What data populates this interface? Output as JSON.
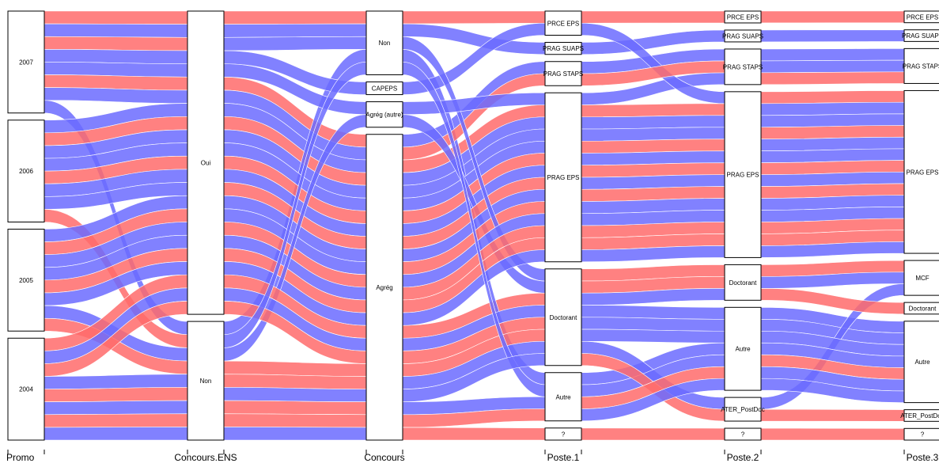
{
  "chart_data": {
    "type": "alluvial",
    "colors": {
      "group_a": "#6b6bff",
      "group_b": "#ff6b6b",
      "box_fill": "#ffffff",
      "box_stroke": "#000000"
    },
    "axes": [
      {
        "name": "Promo",
        "categories": [
          "2007",
          "2006",
          "2005",
          "2004"
        ]
      },
      {
        "name": "Concours.ENS",
        "categories": [
          "Oui",
          "Non"
        ]
      },
      {
        "name": "Concours",
        "categories": [
          "Non",
          "CAPEPS",
          "Agrég (autre)",
          "Agrég"
        ]
      },
      {
        "name": "Poste.1",
        "categories": [
          "PRCE EPS",
          "PRAG SUAPS",
          "PRAG STAPS",
          "PRAG EPS",
          "Doctorant",
          "Autre",
          "?"
        ]
      },
      {
        "name": "Poste.2",
        "categories": [
          "PRCE EPS",
          "PRAG SUAPS",
          "PRAG STAPS",
          "PRAG EPS",
          "Doctorant",
          "Autre",
          "ATER_PostDoc",
          "?"
        ]
      },
      {
        "name": "Poste.3",
        "categories": [
          "PRCE EPS",
          "PRAG SUAPS",
          "PRAG STAPS",
          "PRAG EPS",
          "MCF",
          "Doctorant",
          "Autre",
          "ATER_PostDoc",
          "?"
        ]
      }
    ],
    "records": [
      [
        "2007",
        "Oui",
        "Non",
        "PRCE EPS",
        "PRCE EPS",
        "PRCE EPS",
        "b"
      ],
      [
        "2007",
        "Oui",
        "Non",
        "PRAG SUAPS",
        "PRAG SUAPS",
        "PRAG SUAPS",
        "a"
      ],
      [
        "2007",
        "Oui",
        "Agrég",
        "PRAG EPS",
        "PRAG EPS",
        "PRAG EPS",
        "b"
      ],
      [
        "2007",
        "Oui",
        "Agrég",
        "PRAG EPS",
        "PRAG EPS",
        "PRAG EPS",
        "a"
      ],
      [
        "2007",
        "Oui",
        "Agrég",
        "PRAG STAPS",
        "PRAG STAPS",
        "PRAG STAPS",
        "a"
      ],
      [
        "2007",
        "Oui",
        "Agrég",
        "Doctorant",
        "Doctorant",
        "MCF",
        "b"
      ],
      [
        "2007",
        "Oui",
        "Agrég",
        "PRAG EPS",
        "PRAG STAPS",
        "PRAG STAPS",
        "a"
      ],
      [
        "2007",
        "Non",
        "Non",
        "Autre",
        "Autre",
        "Autre",
        "a"
      ],
      [
        "2006",
        "Oui",
        "Agrég",
        "PRAG EPS",
        "PRAG EPS",
        "PRAG EPS",
        "a"
      ],
      [
        "2006",
        "Oui",
        "Agrég",
        "PRAG EPS",
        "PRAG EPS",
        "PRAG EPS",
        "b"
      ],
      [
        "2006",
        "Oui",
        "Agrég",
        "Doctorant",
        "Autre",
        "Autre",
        "a"
      ],
      [
        "2006",
        "Oui",
        "CAPEPS",
        "PRCE EPS",
        "PRAG EPS",
        "PRAG EPS",
        "a"
      ],
      [
        "2006",
        "Oui",
        "Agrég",
        "PRAG STAPS",
        "PRAG STAPS",
        "PRAG STAPS",
        "b"
      ],
      [
        "2006",
        "Oui",
        "Agrég",
        "PRAG EPS",
        "PRAG EPS",
        "PRAG EPS",
        "a"
      ],
      [
        "2006",
        "Oui",
        "Agrég (autre)",
        "Doctorant",
        "ATER_PostDoc",
        "MCF",
        "a"
      ],
      [
        "2006",
        "Non",
        "Agrég",
        "PRAG EPS",
        "PRAG EPS",
        "PRAG EPS",
        "b"
      ],
      [
        "2005",
        "Oui",
        "Agrég",
        "PRAG EPS",
        "PRAG EPS",
        "PRAG EPS",
        "a"
      ],
      [
        "2005",
        "Oui",
        "Agrég",
        "PRAG EPS",
        "PRAG EPS",
        "PRAG EPS",
        "b"
      ],
      [
        "2005",
        "Oui",
        "Non",
        "Doctorant",
        "Autre",
        "Autre",
        "a"
      ],
      [
        "2005",
        "Oui",
        "Agrég",
        "PRAG EPS",
        "PRAG EPS",
        "PRAG EPS",
        "a"
      ],
      [
        "2005",
        "Oui",
        "Agrég",
        "Doctorant",
        "Doctorant",
        "Doctorant",
        "b"
      ],
      [
        "2005",
        "Oui",
        "Agrég",
        "Autre",
        "Autre",
        "Autre",
        "a"
      ],
      [
        "2005",
        "Non",
        "Agrég (autre)",
        "PRAG EPS",
        "PRAG EPS",
        "PRAG EPS",
        "a"
      ],
      [
        "2005",
        "Non",
        "Agrég",
        "Doctorant",
        "ATER_PostDoc",
        "ATER_PostDoc",
        "b"
      ],
      [
        "2004",
        "Oui",
        "Agrég",
        "PRAG EPS",
        "PRAG EPS",
        "PRAG EPS",
        "b"
      ],
      [
        "2004",
        "Oui",
        "Agrég",
        "Doctorant",
        "Doctorant",
        "MCF",
        "a"
      ],
      [
        "2004",
        "Oui",
        "Agrég",
        "PRAG EPS",
        "PRAG EPS",
        "PRAG EPS",
        "b"
      ],
      [
        "2004",
        "Non",
        "Agrég",
        "PRAG EPS",
        "PRAG EPS",
        "PRAG EPS",
        "a"
      ],
      [
        "2004",
        "Non",
        "Agrég",
        "Autre",
        "Autre",
        "Autre",
        "b"
      ],
      [
        "2004",
        "Non",
        "Non",
        "Autre",
        "Autre",
        "Autre",
        "a"
      ],
      [
        "2004",
        "Non",
        "Agrég",
        "?",
        "?",
        "?",
        "b"
      ],
      [
        "2004",
        "Non",
        "Agrég",
        "Doctorant",
        "Autre",
        "Autre",
        "a"
      ]
    ]
  }
}
